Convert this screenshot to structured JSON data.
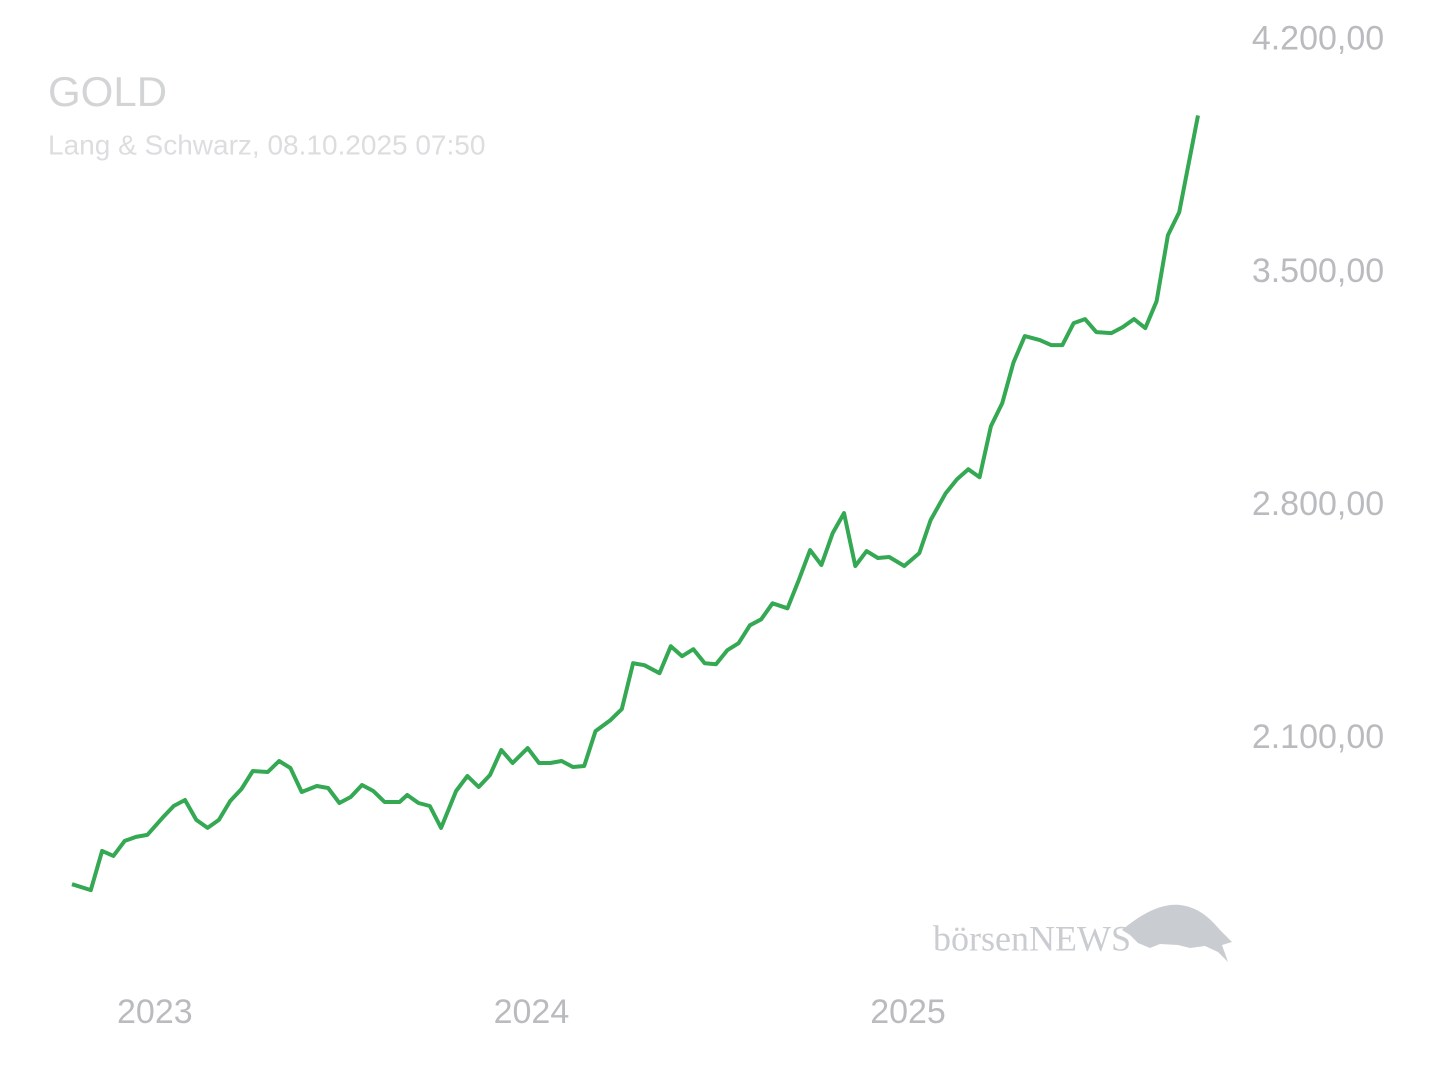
{
  "chart_data": {
    "type": "line",
    "title": "GOLD",
    "subtitle": "Lang & Schwarz, 08.10.2025 07:50",
    "watermark": "börsenNEWS",
    "x": [
      2022.78,
      2022.83,
      2022.86,
      2022.89,
      2022.92,
      2022.95,
      2022.98,
      2023.02,
      2023.05,
      2023.08,
      2023.11,
      2023.14,
      2023.17,
      2023.2,
      2023.23,
      2023.26,
      2023.3,
      2023.33,
      2023.36,
      2023.39,
      2023.43,
      2023.46,
      2023.49,
      2023.52,
      2023.55,
      2023.58,
      2023.61,
      2023.65,
      2023.67,
      2023.7,
      2023.73,
      2023.76,
      2023.8,
      2023.83,
      2023.86,
      2023.89,
      2023.92,
      2023.95,
      2023.99,
      2024.02,
      2024.05,
      2024.08,
      2024.11,
      2024.14,
      2024.17,
      2024.21,
      2024.24,
      2024.27,
      2024.3,
      2024.34,
      2024.37,
      2024.4,
      2024.43,
      2024.46,
      2024.49,
      2024.52,
      2024.55,
      2024.58,
      2024.61,
      2024.64,
      2024.68,
      2024.71,
      2024.74,
      2024.77,
      2024.8,
      2024.83,
      2024.86,
      2024.89,
      2024.92,
      2024.95,
      2024.99,
      2025.03,
      2025.06,
      2025.1,
      2025.13,
      2025.16,
      2025.19,
      2025.22,
      2025.25,
      2025.28,
      2025.31,
      2025.35,
      2025.38,
      2025.41,
      2025.44,
      2025.47,
      2025.5,
      2025.54,
      2025.57,
      2025.6,
      2025.63,
      2025.66,
      2025.69,
      2025.72,
      2025.77
    ],
    "series": [
      {
        "name": "GOLD",
        "color": "#34a853",
        "values": [
          1664,
          1646,
          1764,
          1749,
          1794,
          1806,
          1812,
          1863,
          1899,
          1917,
          1857,
          1833,
          1857,
          1914,
          1950,
          2004,
          2001,
          2034,
          2013,
          1941,
          1959,
          1953,
          1908,
          1926,
          1962,
          1944,
          1911,
          1911,
          1932,
          1908,
          1899,
          1833,
          1944,
          1989,
          1956,
          1992,
          2067,
          2028,
          2073,
          2028,
          2028,
          2034,
          2016,
          2019,
          2124,
          2157,
          2190,
          2328,
          2322,
          2298,
          2379,
          2349,
          2370,
          2328,
          2325,
          2367,
          2388,
          2442,
          2460,
          2508,
          2493,
          2578,
          2668,
          2623,
          2719,
          2779,
          2620,
          2665,
          2644,
          2647,
          2620,
          2659,
          2758,
          2839,
          2881,
          2911,
          2887,
          3040,
          3109,
          3232,
          3311,
          3299,
          3284,
          3284,
          3350,
          3362,
          3323,
          3320,
          3338,
          3362,
          3335,
          3416,
          3614,
          3683,
          3974
        ]
      }
    ],
    "xlim": [
      2022.78,
      2025.77
    ],
    "xticks": [
      2023,
      2024,
      2025
    ],
    "ylim": [
      1400,
      4300
    ],
    "yticks": [
      {
        "value": 2100,
        "label": "2.100,00"
      },
      {
        "value": 2800,
        "label": "2.800,00"
      },
      {
        "value": 3500,
        "label": "3.500,00"
      },
      {
        "value": 4200,
        "label": "4.200,00"
      }
    ],
    "grid": false
  }
}
